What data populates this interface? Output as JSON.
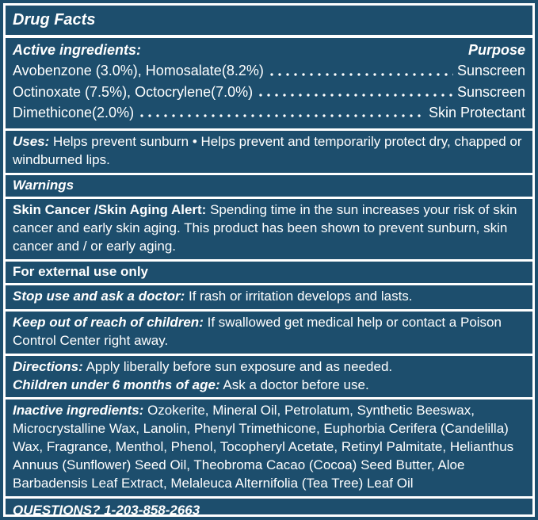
{
  "title": "Drug Facts",
  "active": {
    "heading": "Active ingredients:",
    "purpose_heading": "Purpose",
    "rows": [
      {
        "ingredient": "Avobenzone (3.0%), Homosalate(8.2%)",
        "purpose": "Sunscreen"
      },
      {
        "ingredient": "Octinoxate (7.5%), Octocrylene(7.0%)",
        "purpose": "Sunscreen"
      },
      {
        "ingredient": "Dimethicone(2.0%)",
        "purpose": "Skin Protectant"
      }
    ]
  },
  "uses": {
    "label": "Uses:",
    "text": "Helps prevent sunburn • Helps prevent and temporarily protect dry, chapped or windburned lips."
  },
  "warnings": {
    "heading": "Warnings",
    "alert_label": "Skin Cancer /Skin Aging Alert:",
    "alert_text": "Spending time in the sun increases your risk of skin cancer and early skin aging. This product has been shown to prevent sunburn, skin cancer and / or early aging.",
    "external_use": "For external use only",
    "stop_use_label": "Stop use and ask a doctor:",
    "stop_use_text": "If rash or irritation develops and lasts.",
    "keep_out_label": "Keep out of reach of children:",
    "keep_out_text": "If swallowed get medical help or contact a Poison Control Center right away."
  },
  "directions": {
    "label": "Directions:",
    "text": "Apply liberally before sun exposure and as needed.",
    "children_label": "Children under 6 months of age:",
    "children_text": "Ask a doctor before use."
  },
  "inactive": {
    "label": "Inactive ingredients:",
    "text": "Ozokerite, Mineral Oil, Petrolatum, Synthetic Beeswax, Microcrystalline Wax, Lanolin, Phenyl Trimethicone, Euphorbia Cerifera (Candelilla) Wax, Fragrance, Menthol, Phenol, Tocopheryl Acetate, Retinyl Palmitate, Helianthus Annuus (Sunflower) Seed Oil, Theobroma Cacao (Cocoa) Seed Butter, Aloe Barbadensis Leaf Extract, Melaleuca Alternifolia (Tea Tree) Leaf Oil"
  },
  "questions": "QUESTIONS? 1-203-858-2663",
  "colors": {
    "background": "#1d4e6d",
    "text": "#ffffff",
    "border": "#ffffff"
  }
}
